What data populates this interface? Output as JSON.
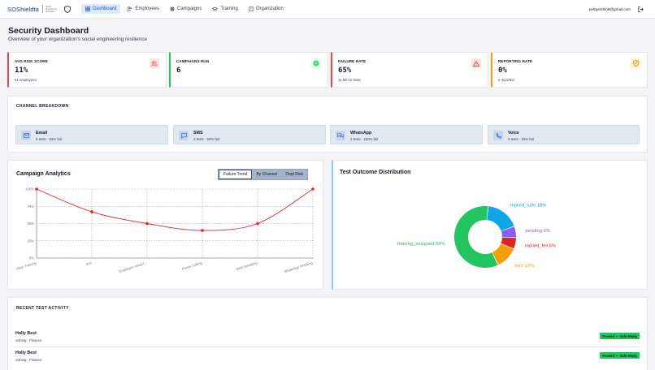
{
  "app": {
    "logo_text": "SOShieldta",
    "logo_small": "Social Engineering Simulation",
    "nav": [
      {
        "label": "Dashboard",
        "icon": "dashboard-icon",
        "active": true
      },
      {
        "label": "Employees",
        "icon": "users-icon",
        "active": false
      },
      {
        "label": "Campaigns",
        "icon": "globe-icon",
        "active": false
      },
      {
        "label": "Training",
        "icon": "graduation-cap-icon",
        "active": false
      },
      {
        "label": "Organization",
        "icon": "building-icon",
        "active": false
      }
    ],
    "user_email": "petrpershin8@gmail.com",
    "logout_icon": "logout-icon"
  },
  "header": {
    "title": "Security Dashboard",
    "subtitle": "Overview of your organization's social engineering resilience"
  },
  "stats": [
    {
      "label": "AVG RISK SCORE",
      "value": "11%",
      "sub": "51 employees",
      "accent": "#ef4444",
      "icon": "users-icon"
    },
    {
      "label": "CAMPAIGNS RUN",
      "value": "6",
      "sub": "",
      "accent": "#22c55e",
      "icon": "target-icon"
    },
    {
      "label": "FAILURE RATE",
      "value": "65%",
      "sub": "11 fell for tests",
      "accent": "#ef4444",
      "icon": "warning-icon"
    },
    {
      "label": "REPORTING RATE",
      "value": "0%",
      "sub": "0 reported",
      "accent": "#f59e0b",
      "icon": "shield-check-icon"
    }
  ],
  "channels": {
    "title": "CHANNEL BREAKDOWN",
    "items": [
      {
        "name": "Email",
        "stats": "6 tests · 83% fail",
        "icon": "mail-icon"
      },
      {
        "name": "SMS",
        "stats": "2 tests · 50% fail",
        "icon": "message-icon"
      },
      {
        "name": "WhatsApp",
        "stats": "3 tests · 100% fail",
        "icon": "chat-icon"
      },
      {
        "name": "Voice",
        "stats": "6 tests · 33% fail",
        "icon": "phone-icon"
      }
    ]
  },
  "analytics": {
    "title": "Campaign Analytics",
    "tabs": [
      "Failure Trend",
      "By Channel",
      "Dept Risk"
    ],
    "active_tab": "Failure Trend"
  },
  "outcome": {
    "title": "Test Outcome Distribution"
  },
  "chart_data": [
    {
      "type": "line",
      "x": [
        "Viber Training",
        "test",
        "Employee email f...",
        "Phone Calling",
        "SMS Smishing",
        "WhatsApp Phishing"
      ],
      "series": [
        {
          "values": [
            100,
            67,
            50,
            40,
            50,
            100
          ]
        }
      ],
      "ylim": [
        0,
        100
      ],
      "yticks": [
        "0%",
        "25%",
        "50%",
        "75%",
        "100%"
      ],
      "grid": true,
      "color": "#dc2626"
    },
    {
      "type": "pie",
      "donut": true,
      "slices": [
        {
          "label": "training_assigned 59%",
          "value": 59,
          "color": "#22c55e"
        },
        {
          "label": "replied_safe 18%",
          "value": 18,
          "color": "#0ea5e9"
        },
        {
          "label": "pending 6%",
          "value": 6,
          "color": "#8b5cf6"
        },
        {
          "label": "replied_fell 6%",
          "value": 6,
          "color": "#dc2626"
        },
        {
          "label": "sent 12%",
          "value": 12,
          "color": "#f59e0b"
        }
      ]
    }
  ],
  "recent": {
    "title": "RECENT TEST ACTIVITY",
    "rows": [
      {
        "name": "Holly Best",
        "sub": "vishing · Finance",
        "badge": "Passed — Safe Reply"
      },
      {
        "name": "Holly Best",
        "sub": "vishing · Finance",
        "badge": "Passed — Safe Reply"
      }
    ]
  }
}
